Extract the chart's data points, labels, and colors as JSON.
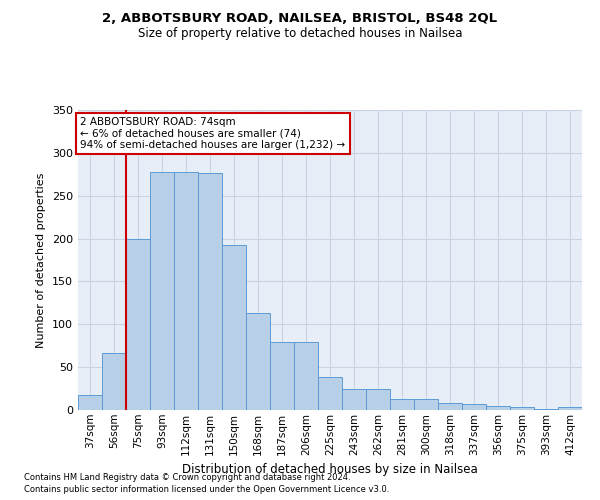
{
  "title1": "2, ABBOTSBURY ROAD, NAILSEA, BRISTOL, BS48 2QL",
  "title2": "Size of property relative to detached houses in Nailsea",
  "xlabel": "Distribution of detached houses by size in Nailsea",
  "ylabel": "Number of detached properties",
  "categories": [
    "37sqm",
    "56sqm",
    "75sqm",
    "93sqm",
    "112sqm",
    "131sqm",
    "150sqm",
    "168sqm",
    "187sqm",
    "206sqm",
    "225sqm",
    "243sqm",
    "262sqm",
    "281sqm",
    "300sqm",
    "318sqm",
    "337sqm",
    "356sqm",
    "375sqm",
    "393sqm",
    "412sqm"
  ],
  "values": [
    17,
    67,
    200,
    278,
    278,
    277,
    193,
    113,
    79,
    79,
    38,
    25,
    25,
    13,
    13,
    8,
    7,
    5,
    3,
    1,
    3
  ],
  "bar_color": "#b8cfe8",
  "bar_edge_color": "#5b9bd5",
  "vline_color": "#cc0000",
  "annotation_text": "2 ABBOTSBURY ROAD: 74sqm\n← 6% of detached houses are smaller (74)\n94% of semi-detached houses are larger (1,232) →",
  "annotation_box_color": "#ffffff",
  "annotation_box_edge_color": "#cc0000",
  "grid_color": "#c8d4e4",
  "background_color": "#e8eef8",
  "footer1": "Contains HM Land Registry data © Crown copyright and database right 2024.",
  "footer2": "Contains public sector information licensed under the Open Government Licence v3.0.",
  "ylim": [
    0,
    350
  ],
  "yticks": [
    0,
    50,
    100,
    150,
    200,
    250,
    300,
    350
  ]
}
